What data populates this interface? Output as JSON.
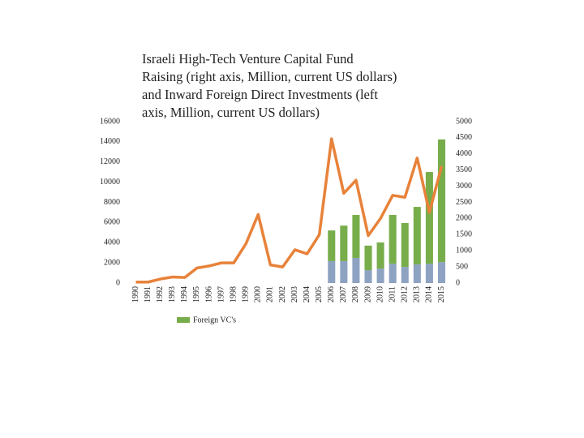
{
  "chart_data": {
    "type": "combo",
    "title": [
      "Israeli High-Tech Venture Capital Fund",
      "Raising (right axis, Million, current US dollars)",
      "and Inward Foreign Direct Investments (left",
      "axis, Million, current US dollars)"
    ],
    "categories": [
      "1990",
      "1991",
      "1992",
      "1993",
      "1994",
      "1995",
      "1996",
      "1997",
      "1998",
      "1999",
      "2000",
      "2001",
      "2002",
      "2003",
      "2004",
      "2005",
      "2006",
      "2007",
      "2008",
      "2009",
      "2010",
      "2011",
      "2012",
      "2013",
      "2014",
      "2015"
    ],
    "ylim": [
      0,
      16000
    ],
    "yticks": [
      0,
      2000,
      4000,
      6000,
      8000,
      10000,
      12000,
      14000,
      16000
    ],
    "y2lim": [
      0,
      5000
    ],
    "y2ticks": [
      0,
      500,
      1000,
      1500,
      2000,
      2500,
      3000,
      3500,
      4000,
      4500,
      5000
    ],
    "legend": "bottom",
    "series": [
      {
        "type": "bar",
        "axis": "y2",
        "color": "#8ea2c2",
        "values": [
          null,
          null,
          null,
          null,
          null,
          null,
          null,
          null,
          null,
          null,
          null,
          null,
          null,
          null,
          null,
          null,
          680,
          680,
          780,
          400,
          450,
          600,
          500,
          580,
          600,
          650
        ]
      },
      {
        "type": "bar",
        "axis": "y2",
        "name": "Foreign VC's",
        "color": "#77ad4a",
        "values": [
          null,
          null,
          null,
          null,
          null,
          null,
          null,
          null,
          null,
          null,
          null,
          null,
          null,
          null,
          null,
          null,
          950,
          1100,
          1330,
          760,
          810,
          1510,
          1360,
          1780,
          2840,
          3800
        ]
      },
      {
        "type": "line",
        "axis": "y",
        "color": "#e8823a",
        "values": [
          100,
          100,
          400,
          600,
          550,
          1500,
          1700,
          2000,
          2000,
          3900,
          6800,
          1800,
          1600,
          3300,
          2900,
          4800,
          14300,
          8900,
          10200,
          4700,
          6400,
          8700,
          8500,
          12400,
          7000,
          11600
        ]
      }
    ]
  }
}
